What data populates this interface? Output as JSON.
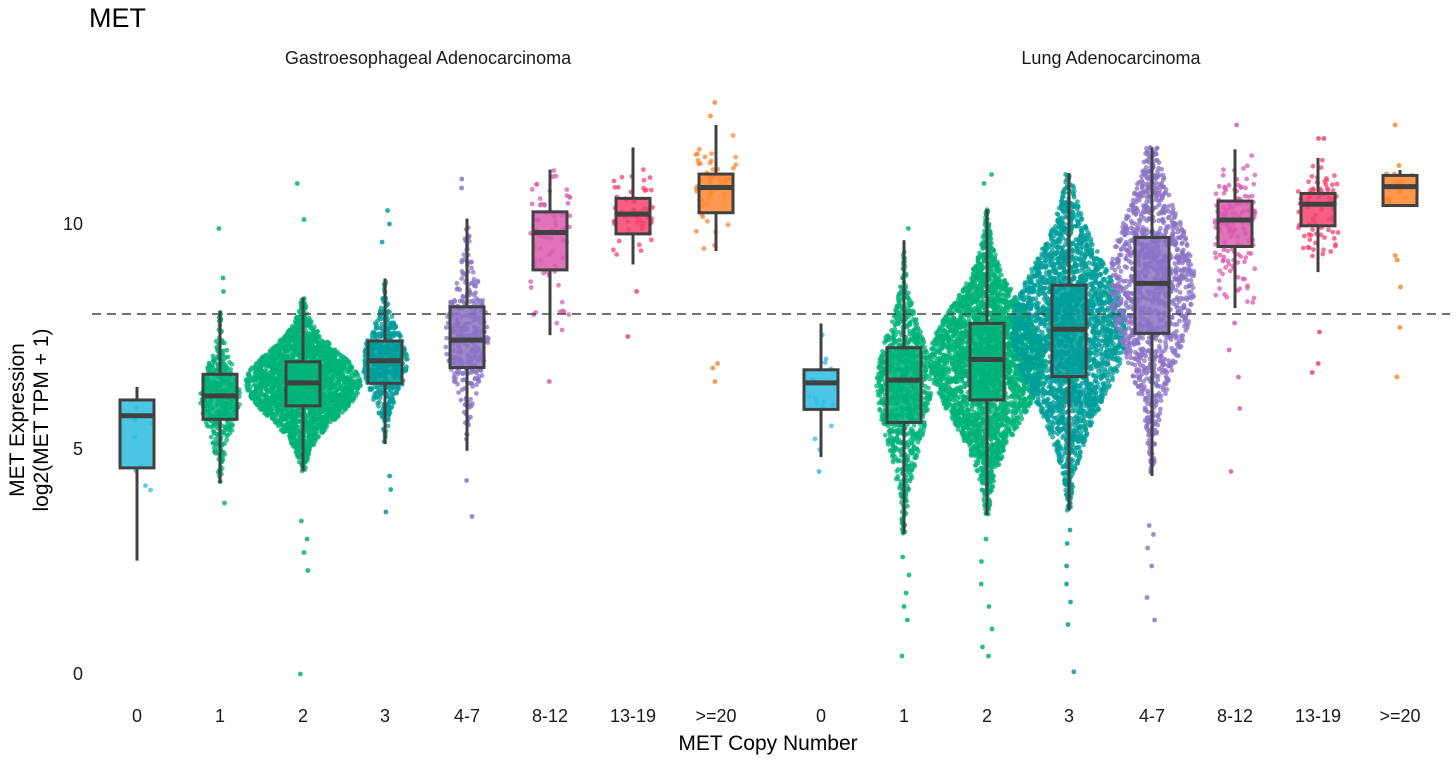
{
  "chart_data": {
    "type": "box",
    "title": "MET",
    "xlabel": "MET Copy Number",
    "ylabel": [
      "MET Expression",
      "log2(MET TPM + 1)"
    ],
    "ylim": [
      -0.5,
      13
    ],
    "yticks": [
      0,
      5,
      10
    ],
    "reference_line": 8,
    "grid": false,
    "legend": "none",
    "categories": [
      "0",
      "1",
      "2",
      "3",
      "4-7",
      "8-12",
      "13-19",
      ">=20"
    ],
    "colors": [
      "#2BBDE0",
      "#00B37A",
      "#00B37A",
      "#009E9A",
      "#8B73C4",
      "#D95CAE",
      "#F5426E",
      "#FF8630"
    ],
    "panels": [
      {
        "name": "Gastroesophageal Adenocarcinoma",
        "boxes": [
          {
            "category": "0",
            "lower": 2.52,
            "q1": 4.58,
            "median": 5.74,
            "q3": 6.09,
            "upper": 6.38,
            "outliers": []
          },
          {
            "category": "1",
            "lower": 4.24,
            "q1": 5.66,
            "median": 6.18,
            "q3": 6.66,
            "upper": 8.07,
            "outliers": [
              9.9,
              8.8,
              8.5,
              3.8
            ]
          },
          {
            "category": "2",
            "lower": 4.51,
            "q1": 5.96,
            "median": 6.47,
            "q3": 6.94,
            "upper": 8.36,
            "outliers": [
              10.9,
              10.1,
              2.3,
              2.7,
              3.0,
              3.4,
              0.0
            ]
          },
          {
            "category": "3",
            "lower": 5.11,
            "q1": 6.46,
            "median": 6.96,
            "q3": 7.4,
            "upper": 8.79,
            "outliers": [
              10.3,
              10.0,
              9.6,
              3.6,
              4.1,
              4.4
            ]
          },
          {
            "category": "4-7",
            "lower": 4.96,
            "q1": 6.81,
            "median": 7.42,
            "q3": 8.16,
            "upper": 10.12,
            "outliers": [
              11.0,
              10.8,
              4.3,
              3.5
            ]
          },
          {
            "category": "8-12",
            "lower": 7.53,
            "q1": 8.98,
            "median": 9.81,
            "q3": 10.27,
            "upper": 11.21,
            "outliers": [
              6.5
            ]
          },
          {
            "category": "13-19",
            "lower": 9.1,
            "q1": 9.78,
            "median": 10.22,
            "q3": 10.57,
            "upper": 11.7,
            "outliers": [
              8.5,
              7.5
            ]
          },
          {
            "category": ">=20",
            "lower": 9.4,
            "q1": 10.25,
            "median": 10.81,
            "q3": 11.11,
            "upper": 12.2,
            "outliers": [
              12.7,
              12.4,
              6.9,
              6.8,
              6.5
            ]
          }
        ]
      },
      {
        "name": "Lung Adenocarcinoma",
        "boxes": [
          {
            "category": "0",
            "lower": 4.82,
            "q1": 5.88,
            "median": 6.47,
            "q3": 6.76,
            "upper": 7.79,
            "outliers": [
              4.5
            ]
          },
          {
            "category": "1",
            "lower": 3.11,
            "q1": 5.59,
            "median": 6.53,
            "q3": 7.25,
            "upper": 9.64,
            "outliers": [
              9.9,
              2.6,
              2.2,
              1.8,
              1.5,
              1.2,
              0.4
            ]
          },
          {
            "category": "2",
            "lower": 3.53,
            "q1": 6.09,
            "median": 6.99,
            "q3": 7.79,
            "upper": 10.33,
            "outliers": [
              11.1,
              10.9,
              3.0,
              2.5,
              2.0,
              1.5,
              1.0,
              0.6,
              0.4
            ]
          },
          {
            "category": "3",
            "lower": 3.63,
            "q1": 6.61,
            "median": 7.66,
            "q3": 8.64,
            "upper": 11.13,
            "outliers": [
              3.2,
              2.9,
              2.4,
              2.0,
              1.6,
              1.1,
              0.05
            ]
          },
          {
            "category": "4-7",
            "lower": 4.4,
            "q1": 7.57,
            "median": 8.68,
            "q3": 9.7,
            "upper": 11.7,
            "outliers": [
              3.3,
              3.1,
              2.8,
              2.4,
              1.7,
              1.2
            ]
          },
          {
            "category": "8-12",
            "lower": 8.13,
            "q1": 9.5,
            "median": 10.09,
            "q3": 10.51,
            "upper": 11.66,
            "outliers": [
              12.2,
              7.8,
              7.2,
              6.6,
              5.9,
              4.5
            ]
          },
          {
            "category": "13-19",
            "lower": 8.93,
            "q1": 9.96,
            "median": 10.44,
            "q3": 10.68,
            "upper": 11.47,
            "outliers": [
              11.9,
              11.9,
              7.6,
              6.9,
              6.7
            ]
          },
          {
            "category": ">=20",
            "lower": 10.41,
            "q1": 10.41,
            "median": 10.83,
            "q3": 11.08,
            "upper": 11.2,
            "outliers": [
              12.2,
              11.3,
              10.9,
              9.3,
              9.2,
              8.6,
              7.7,
              6.6
            ]
          }
        ]
      }
    ]
  }
}
